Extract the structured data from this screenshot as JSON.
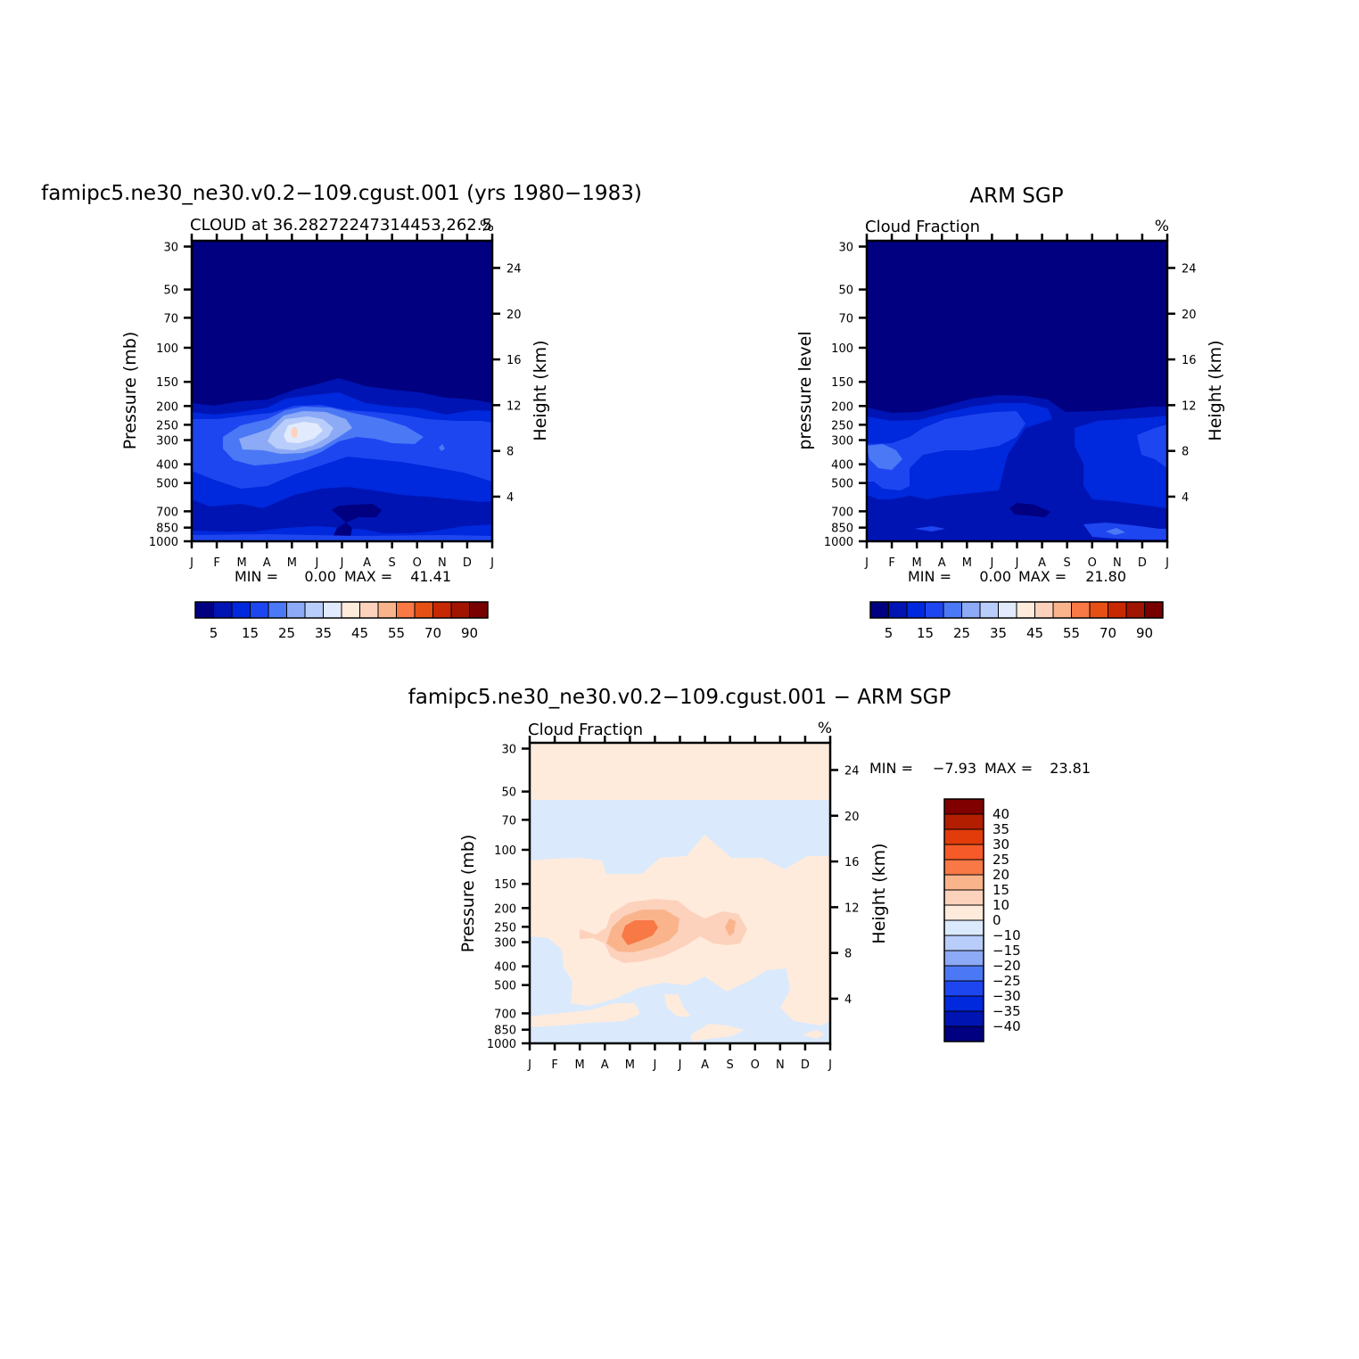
{
  "colors": {
    "abs_scale": [
      "#000080",
      "#0014b4",
      "#0028dc",
      "#1e46f0",
      "#4b78f5",
      "#8caaf5",
      "#b9cdfa",
      "#e1ebfd",
      "#ffebdc",
      "#fcd2bc",
      "#fab48c",
      "#f87846",
      "#e65014",
      "#c82800",
      "#a01400",
      "#780000"
    ],
    "diff_scale": [
      "#000080",
      "#0014b4",
      "#0028dc",
      "#1e46f0",
      "#4b78f5",
      "#8caaf5",
      "#b9cdfa",
      "#daeafc",
      "#ffebdc",
      "#fcd2bc",
      "#fab48c",
      "#f87846",
      "#f55a28",
      "#e13c0a",
      "#b41e00",
      "#800000"
    ]
  },
  "chart_data": [
    {
      "type": "heatmap",
      "title": "famipc5.ne30_ne30.v0.2−109.cgust.001 (yrs 1980−1983)",
      "subtitle": "CLOUD at 36.28272247314453,262.5",
      "units": "%",
      "ylabel": "Pressure (mb)",
      "ylabel_right": "Height (km)",
      "x_ticks": [
        "J",
        "F",
        "M",
        "A",
        "M",
        "J",
        "J",
        "A",
        "S",
        "O",
        "N",
        "D",
        "J"
      ],
      "y_ticks": [
        "30",
        "50",
        "70",
        "100",
        "150",
        "200",
        "250",
        "300",
        "400",
        "500",
        "700",
        "850",
        "1000"
      ],
      "y_ticks_right": [
        "24",
        "20",
        "16",
        "12",
        "8",
        "4"
      ],
      "min_label": "MIN =",
      "min": "0.00",
      "max_label": "MAX =",
      "max": "41.41",
      "colorbar_labels": [
        "5",
        "15",
        "25",
        "35",
        "45",
        "55",
        "70",
        "90"
      ],
      "features": {
        "layer_top_mb": [
          205,
          210,
          205,
          200,
          185,
          175,
          170,
          180,
          190,
          195,
          200,
          205,
          205
        ],
        "peak_month": "May",
        "peak_mb": 270,
        "peak_value": 41.41
      }
    },
    {
      "type": "heatmap",
      "title": "ARM SGP",
      "subtitle": "Cloud Fraction",
      "units": "%",
      "ylabel": "pressure level",
      "ylabel_right": "Height (km)",
      "x_ticks": [
        "J",
        "F",
        "M",
        "A",
        "M",
        "J",
        "J",
        "A",
        "S",
        "O",
        "N",
        "D",
        "J"
      ],
      "y_ticks": [
        "30",
        "50",
        "70",
        "100",
        "150",
        "200",
        "250",
        "300",
        "400",
        "500",
        "700",
        "850",
        "1000"
      ],
      "y_ticks_right": [
        "24",
        "20",
        "16",
        "12",
        "8",
        "4"
      ],
      "min_label": "MIN =",
      "min": "0.00",
      "max_label": "MAX =",
      "max": "21.80",
      "colorbar_labels": [
        "5",
        "15",
        "25",
        "35",
        "45",
        "55",
        "70",
        "90"
      ]
    },
    {
      "type": "heatmap",
      "title": "famipc5.ne30_ne30.v0.2−109.cgust.001 − ARM SGP",
      "subtitle": "Cloud Fraction",
      "units": "%",
      "ylabel": "Pressure (mb)",
      "ylabel_right": "Height (km)",
      "x_ticks": [
        "J",
        "F",
        "M",
        "A",
        "M",
        "J",
        "J",
        "A",
        "S",
        "O",
        "N",
        "D",
        "J"
      ],
      "y_ticks": [
        "30",
        "50",
        "70",
        "100",
        "150",
        "200",
        "250",
        "300",
        "400",
        "500",
        "700",
        "850",
        "1000"
      ],
      "y_ticks_right": [
        "24",
        "20",
        "16",
        "12",
        "8",
        "4"
      ],
      "min_label": "MIN =",
      "min": "−7.93",
      "max_label": "MAX =",
      "max": "23.81",
      "colorbar_labels": [
        "40",
        "35",
        "30",
        "25",
        "20",
        "15",
        "10",
        "0",
        "−10",
        "−15",
        "−20",
        "−25",
        "−30",
        "−35",
        "−40"
      ]
    }
  ]
}
